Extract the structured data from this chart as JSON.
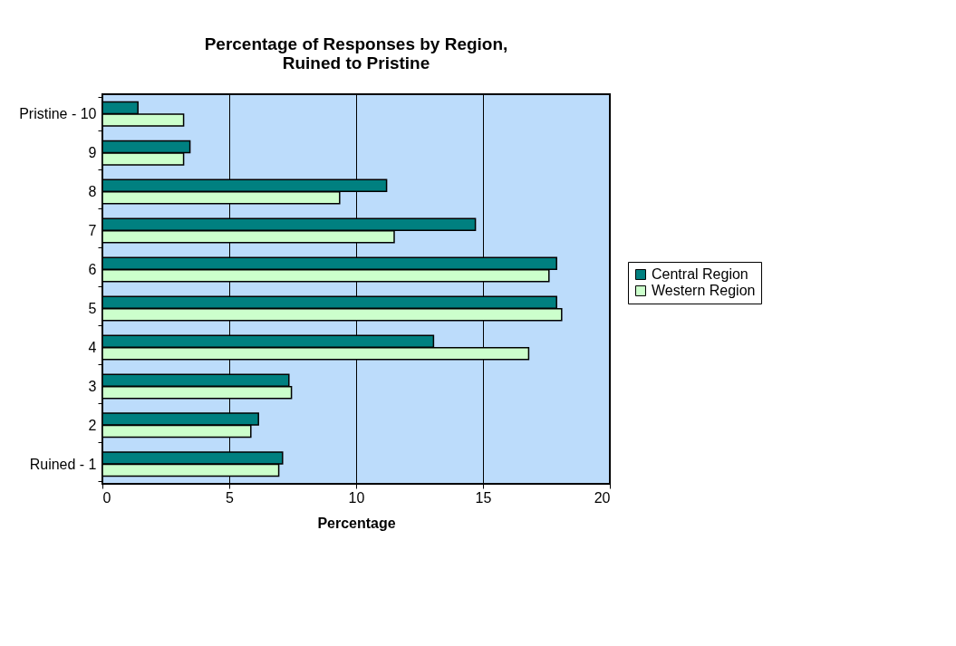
{
  "chart_data": {
    "type": "bar",
    "orientation": "horizontal",
    "title": "Percentage of Responses by Region,\nRuined to Pristine",
    "xlabel": "Percentage",
    "categories": [
      "Pristine - 10",
      "9",
      "8",
      "7",
      "6",
      "5",
      "4",
      "3",
      "2",
      "Ruined - 1"
    ],
    "series": [
      {
        "name": "Central Region",
        "color": "#008080",
        "values": [
          1.4,
          3.45,
          11.2,
          14.7,
          17.9,
          17.9,
          13.05,
          7.35,
          6.15,
          7.1
        ]
      },
      {
        "name": "Western Region",
        "color": "#ccffcc",
        "values": [
          3.2,
          3.2,
          9.35,
          11.5,
          17.6,
          18.1,
          16.8,
          7.45,
          5.85,
          6.95
        ]
      }
    ],
    "xlim": [
      0,
      20
    ],
    "xticks": [
      0,
      5,
      10,
      15,
      20
    ],
    "grid": "x",
    "legend": "right"
  }
}
